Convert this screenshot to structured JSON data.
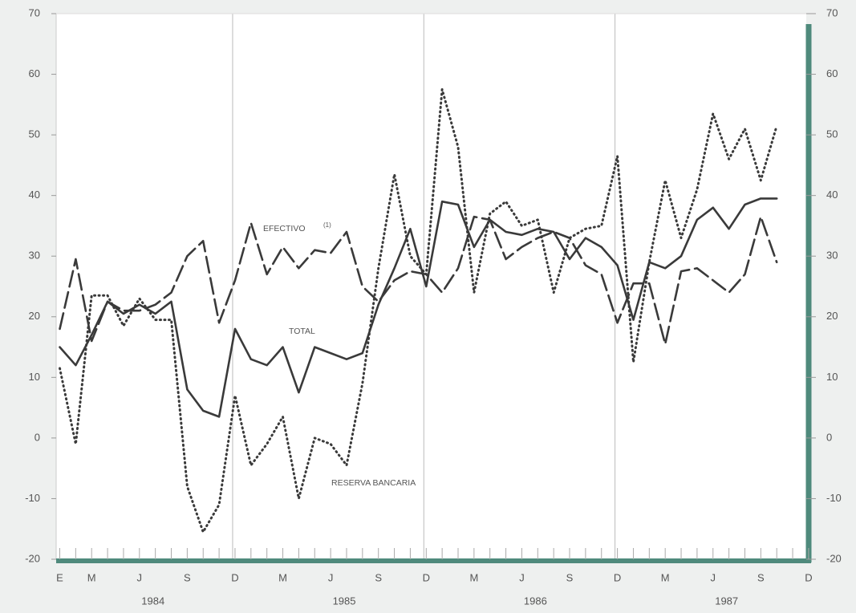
{
  "chart_data": {
    "type": "line",
    "categories": [
      "E",
      null,
      "M",
      null,
      null,
      "J",
      null,
      null,
      "S",
      null,
      null,
      "D",
      null,
      null,
      "M",
      null,
      null,
      "J",
      null,
      null,
      "S",
      null,
      null,
      "D",
      null,
      null,
      "M",
      null,
      null,
      "J",
      null,
      null,
      "S",
      null,
      null,
      "D",
      null,
      null,
      "M",
      null,
      null,
      "J",
      null,
      null,
      "S",
      null,
      null,
      "D"
    ],
    "years": [
      "1984",
      "1985",
      "1986",
      "1987"
    ],
    "annotations": [
      "EFECTIVO",
      "(1)",
      "TOTAL",
      "RESERVA BANCARIA"
    ],
    "ylim": [
      -20,
      70
    ],
    "yticks": [
      -20,
      -10,
      0,
      10,
      20,
      30,
      40,
      50,
      60,
      70
    ],
    "series": [
      {
        "name": "TOTAL",
        "color": "#3a3a3a",
        "dash": "solid",
        "values": [
          15,
          12,
          17,
          22.5,
          20.5,
          22,
          20.5,
          22.5,
          8,
          4.5,
          3.5,
          18,
          13,
          12,
          15,
          7.5,
          15,
          14,
          13,
          14,
          22,
          28,
          34.5,
          25,
          39,
          38.5,
          31.5,
          36,
          34,
          33.5,
          34.5,
          34,
          29.5,
          33,
          31.5,
          28.5,
          19.5,
          29,
          28,
          30,
          36,
          38,
          34.5,
          38.5,
          39.5,
          39.5,
          null,
          null
        ]
      },
      {
        "name": "EFECTIVO",
        "color": "#3a3a3a",
        "dash": "dashed",
        "values": [
          18,
          29.5,
          16,
          22.5,
          21,
          21,
          22,
          24,
          30,
          32.5,
          19,
          26,
          35.5,
          27,
          31.5,
          28,
          31,
          30.5,
          34,
          25,
          22.5,
          26,
          27.5,
          27,
          24,
          28,
          36.5,
          36,
          29.5,
          31.5,
          33,
          34,
          33,
          28.5,
          27,
          19,
          25.5,
          25.5,
          15.5,
          27.5,
          28,
          26,
          24,
          27,
          36.5,
          29,
          null,
          null
        ]
      },
      {
        "name": "RESERVA BANCARIA",
        "color": "#3a3a3a",
        "dash": "dotted",
        "values": [
          11.5,
          -1,
          23.5,
          23.5,
          18.5,
          23,
          19.5,
          19.5,
          -8,
          -15.5,
          -11,
          7,
          -4.5,
          -1,
          3.5,
          -10,
          0,
          -1,
          -4.5,
          9,
          28,
          43.5,
          30,
          27,
          57.5,
          48,
          24,
          37,
          39,
          35,
          36,
          24,
          33,
          34.5,
          35,
          46.5,
          12.5,
          29,
          42.5,
          33,
          41,
          53.5,
          46,
          51,
          42.5,
          51.5,
          null,
          null
        ]
      }
    ],
    "frame_color": "#4f8a7c",
    "grid": false
  }
}
